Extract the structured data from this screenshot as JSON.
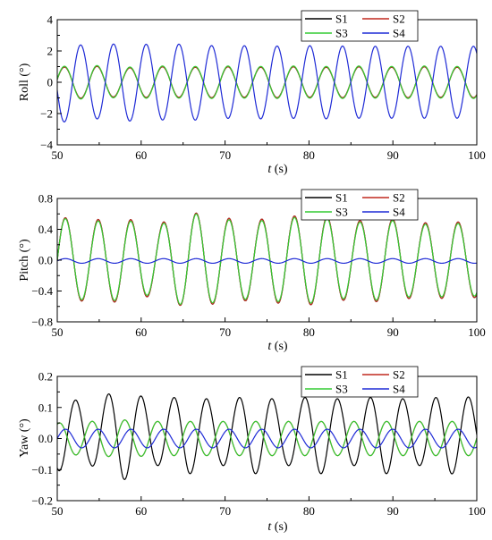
{
  "colors": {
    "S1": "#000000",
    "S2": "#c0281e",
    "S3": "#33cc33",
    "S4": "#1f2bd6"
  },
  "chart_data": [
    {
      "type": "line",
      "xlabel_italic": "t",
      "xlabel_unit": " (s)",
      "ylabel": "Roll (°)",
      "xlim": [
        50,
        100
      ],
      "ylim": [
        -4,
        4
      ],
      "xticks": [
        50,
        60,
        70,
        80,
        90,
        100
      ],
      "yticks": [
        -4,
        -2,
        0,
        2,
        4
      ],
      "ytick_labels": [
        "−4",
        "−2",
        "0",
        "2",
        "4"
      ],
      "grid": false,
      "legend_position": "top-right",
      "series": [
        {
          "name": "S1",
          "color_key": "S1",
          "period": 3.9,
          "phase": 0.2,
          "amplitude": [
            0.95,
            1.05,
            0.9,
            1.0,
            0.95,
            1.0,
            0.95,
            1.0,
            0.95,
            1.0,
            0.95,
            1.0,
            0.95,
            1.0
          ],
          "offset": 0
        },
        {
          "name": "S2",
          "color_key": "S2",
          "period": 3.9,
          "phase": 0.2,
          "amplitude": [
            0.95,
            1.05,
            0.9,
            1.0,
            0.95,
            1.0,
            0.95,
            1.0,
            0.95,
            1.0,
            0.95,
            1.0,
            0.95,
            1.0
          ],
          "offset": 0
        },
        {
          "name": "S3",
          "color_key": "S3",
          "period": 3.9,
          "phase": 0.2,
          "amplitude": [
            1.0,
            1.1,
            0.95,
            1.05,
            1.0,
            1.05,
            1.0,
            1.05,
            1.0,
            1.05,
            1.0,
            1.05,
            1.0,
            1.05
          ],
          "offset": 0
        },
        {
          "name": "S4",
          "color_key": "S4",
          "period": 3.9,
          "phase": 3.34,
          "amplitude": [
            2.6,
            2.3,
            2.5,
            2.4,
            2.45,
            2.3,
            2.35,
            2.3,
            2.35,
            2.3,
            2.3,
            2.3,
            2.3,
            2.3
          ],
          "offset": 0
        }
      ]
    },
    {
      "type": "line",
      "xlabel_italic": "t",
      "xlabel_unit": " (s)",
      "ylabel": "Pitch (°)",
      "xlim": [
        50,
        100
      ],
      "ylim": [
        -0.8,
        0.8
      ],
      "xticks": [
        50,
        60,
        70,
        80,
        90,
        100
      ],
      "yticks": [
        -0.8,
        -0.4,
        0.0,
        0.4,
        0.8
      ],
      "ytick_labels": [
        "−0.8",
        "−0.4",
        "0.0",
        "0.4",
        "0.8"
      ],
      "grid": false,
      "legend_position": "top-right",
      "series": [
        {
          "name": "S1",
          "color_key": "S1",
          "period": 3.9,
          "phase": 0.0,
          "amplitude": [
            0.56,
            0.52,
            0.55,
            0.45,
            0.63,
            0.55,
            0.52,
            0.57,
            0.58,
            0.5,
            0.55,
            0.48,
            0.5,
            0.48
          ],
          "offset": 0
        },
        {
          "name": "S2",
          "color_key": "S2",
          "period": 3.9,
          "phase": 0.0,
          "amplitude": [
            0.56,
            0.52,
            0.55,
            0.45,
            0.63,
            0.55,
            0.52,
            0.57,
            0.58,
            0.5,
            0.55,
            0.48,
            0.5,
            0.48
          ],
          "offset": 0
        },
        {
          "name": "S3",
          "color_key": "S3",
          "period": 3.9,
          "phase": 0.0,
          "amplitude": [
            0.55,
            0.5,
            0.53,
            0.43,
            0.62,
            0.53,
            0.5,
            0.55,
            0.56,
            0.48,
            0.53,
            0.46,
            0.48,
            0.46
          ],
          "offset": 0
        },
        {
          "name": "S4",
          "color_key": "S4",
          "period": 3.9,
          "phase": 0.0,
          "amplitude": [
            0.03,
            0.03,
            0.03,
            0.03,
            0.03,
            0.03,
            0.03,
            0.03,
            0.03,
            0.03,
            0.03,
            0.03,
            0.03,
            0.03
          ],
          "offset": -0.01
        }
      ]
    },
    {
      "type": "line",
      "xlabel_italic": "t",
      "xlabel_unit": " (s)",
      "ylabel": "Yaw (°)",
      "xlim": [
        50,
        100
      ],
      "ylim": [
        -0.2,
        0.2
      ],
      "xticks": [
        50,
        60,
        70,
        80,
        90,
        100
      ],
      "yticks": [
        -0.2,
        -0.1,
        0.0,
        0.1,
        0.2
      ],
      "ytick_labels": [
        "−0.2",
        "−0.1",
        "0.0",
        "0.1",
        "0.2"
      ],
      "grid": false,
      "legend_position": "top-right",
      "series": [
        {
          "name": "S1",
          "color_key": "S1",
          "period": 3.9,
          "phase": 4.3,
          "amplitude": [
            0.12,
            0.1,
            0.15,
            0.1,
            0.13,
            0.1,
            0.13,
            0.1,
            0.13,
            0.1,
            0.13,
            0.1,
            0.13,
            0.11
          ],
          "offset": 0.015
        },
        {
          "name": "S2",
          "color_key": "S2",
          "period": 3.9,
          "phase": 1.15,
          "amplitude": [
            0.05,
            0.055,
            0.06,
            0.055,
            0.055,
            0.055,
            0.055,
            0.055,
            0.055,
            0.055,
            0.055,
            0.055,
            0.055,
            0.055
          ],
          "offset": 0
        },
        {
          "name": "S3",
          "color_key": "S3",
          "period": 3.9,
          "phase": 1.15,
          "amplitude": [
            0.05,
            0.055,
            0.06,
            0.055,
            0.055,
            0.055,
            0.055,
            0.055,
            0.055,
            0.055,
            0.055,
            0.055,
            0.055,
            0.055
          ],
          "offset": 0
        },
        {
          "name": "S4",
          "color_key": "S4",
          "period": 3.9,
          "phase": 0.0,
          "amplitude": [
            0.03,
            0.03,
            0.03,
            0.03,
            0.03,
            0.03,
            0.03,
            0.03,
            0.03,
            0.03,
            0.03,
            0.03,
            0.03,
            0.03
          ],
          "offset": 0
        }
      ]
    }
  ]
}
